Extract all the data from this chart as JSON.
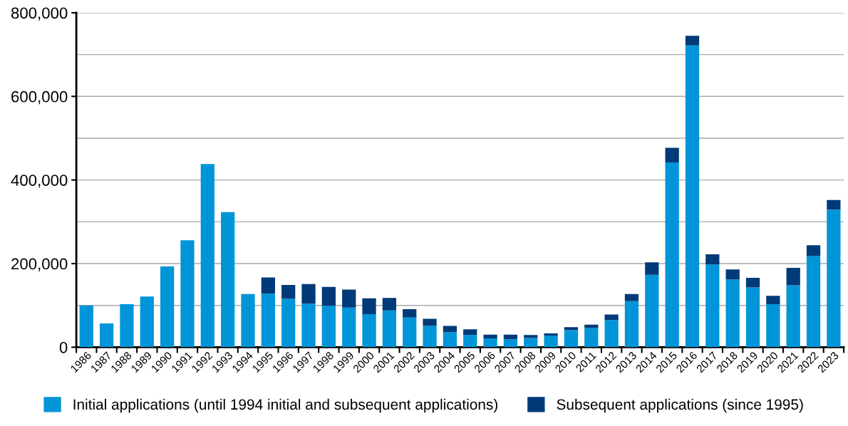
{
  "chart_data": {
    "type": "bar",
    "stacked": true,
    "categories": [
      "1986",
      "1987",
      "1988",
      "1989",
      "1990",
      "1991",
      "1992",
      "1993",
      "1994",
      "1995",
      "1996",
      "1997",
      "1998",
      "1999",
      "2000",
      "2001",
      "2002",
      "2003",
      "2004",
      "2005",
      "2006",
      "2007",
      "2008",
      "2009",
      "2010",
      "2011",
      "2012",
      "2013",
      "2014",
      "2015",
      "2016",
      "2017",
      "2018",
      "2019",
      "2020",
      "2021",
      "2022",
      "2023"
    ],
    "series": [
      {
        "name": "Initial applications (until 1994 initial and subsequent applications)",
        "color": "#0095d8",
        "values": [
          100000,
          57000,
          103000,
          121000,
          193000,
          256000,
          438000,
          323000,
          127000,
          128000,
          116000,
          104000,
          99000,
          95000,
          79000,
          88000,
          71000,
          51000,
          36000,
          29000,
          21000,
          19000,
          22000,
          28000,
          41000,
          46000,
          65000,
          110000,
          173000,
          442000,
          722000,
          198000,
          162000,
          143000,
          103000,
          148000,
          218000,
          329000
        ]
      },
      {
        "name": "Subsequent applications (since 1995)",
        "color": "#003a78",
        "values": [
          null,
          null,
          null,
          null,
          null,
          null,
          null,
          null,
          null,
          39000,
          33000,
          47000,
          45000,
          43000,
          38000,
          30000,
          20000,
          17000,
          15000,
          14000,
          9000,
          11000,
          7000,
          5000,
          7000,
          8000,
          13000,
          17000,
          30000,
          35000,
          23000,
          24000,
          24000,
          23000,
          20000,
          42000,
          26000,
          23000
        ]
      }
    ],
    "ylim": [
      0,
      800000
    ],
    "yticks": [
      {
        "value": 0,
        "label": "0"
      },
      {
        "value": 200000,
        "label": "200,000"
      },
      {
        "value": 400000,
        "label": "400,000"
      },
      {
        "value": 600000,
        "label": "600,000"
      },
      {
        "value": 800000,
        "label": "800,000"
      }
    ],
    "grid": "y",
    "legend": "bottom"
  }
}
